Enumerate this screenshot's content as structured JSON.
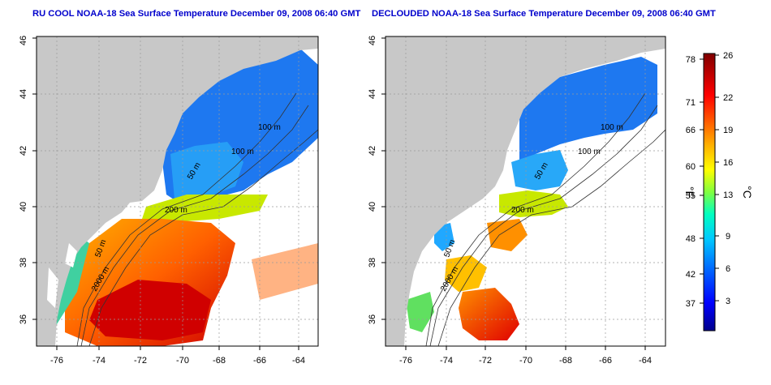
{
  "left_panel": {
    "title": "RU COOL NOAA-18 Sea Surface Temperature December 09, 2008 06:40 GMT",
    "lon_ticks": [
      "-76",
      "-74",
      "-72",
      "-70",
      "-68",
      "-66",
      "-64"
    ],
    "lat_ticks": [
      "36",
      "38",
      "40",
      "42",
      "44",
      "46"
    ],
    "contour_labels": [
      "100 m",
      "100 m",
      "50 m",
      "200 m",
      "50 m",
      "2000 m"
    ]
  },
  "right_panel": {
    "title": "DECLOUDED NOAA-18 Sea Surface Temperature December 09, 2008 06:40 GMT",
    "lon_ticks": [
      "-76",
      "-74",
      "-72",
      "-70",
      "-68",
      "-66",
      "-64"
    ],
    "lat_ticks": [
      "36",
      "38",
      "40",
      "42",
      "44",
      "46"
    ],
    "contour_labels": [
      "100 m",
      "100 m",
      "50 m",
      "200 m",
      "50 m",
      "2000 m"
    ]
  },
  "colorbar": {
    "fahrenheit_ticks": [
      "78",
      "71",
      "66",
      "60",
      "55",
      "48",
      "42",
      "37"
    ],
    "celsius_ticks": [
      "26",
      "22",
      "19",
      "16",
      "13",
      "9",
      "6",
      "3"
    ],
    "fahrenheit_unit": "°F",
    "celsius_unit": "°C",
    "colors": [
      "#00008b",
      "#0000ff",
      "#0080ff",
      "#00c0ff",
      "#00ffc0",
      "#80ff40",
      "#ffff00",
      "#ffb000",
      "#ff6000",
      "#ff0000",
      "#a00000",
      "#800000"
    ]
  },
  "colors": {
    "land": "#c8c8c8",
    "title": "#0000cc",
    "grid": "#9a9a9a"
  }
}
